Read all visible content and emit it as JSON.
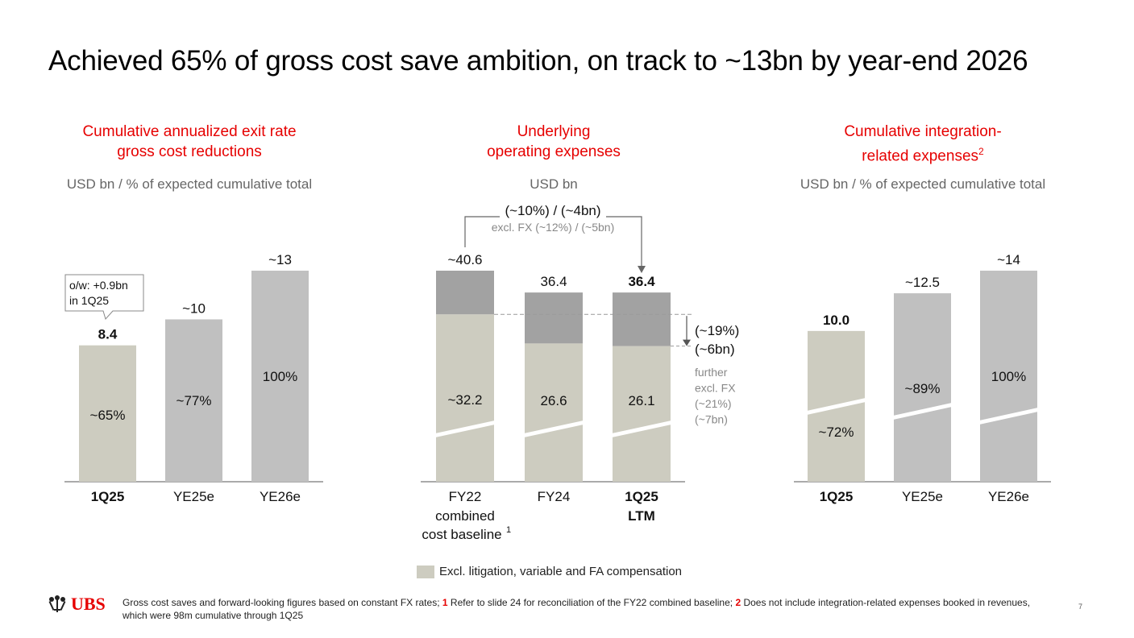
{
  "title": "Achieved 65% of gross cost save ambition, on track to ~13bn by year-end 2026",
  "colors": {
    "accent": "#e60000",
    "bar_light": "#cdccc0",
    "bar_grey": "#c0c0c0",
    "bar_dark": "#a2a2a2"
  },
  "panels": {
    "left": {
      "subtitle_line1": "Cumulative annualized exit rate",
      "subtitle_line2": "gross cost reductions",
      "unit": "USD bn / % of expected cumulative total"
    },
    "middle": {
      "subtitle_line1": "Underlying",
      "subtitle_line2": "operating expenses",
      "unit": "USD bn"
    },
    "right": {
      "subtitle_line1": "Cumulative integration-",
      "subtitle_line2": "related expenses",
      "subtitle_sup": "2",
      "unit": "USD bn / % of expected cumulative total"
    }
  },
  "chart_data": [
    {
      "type": "bar",
      "categories": [
        "1Q25",
        "YE25e",
        "YE26e"
      ],
      "values": [
        8.4,
        10,
        13
      ],
      "value_labels": [
        "8.4",
        "~10",
        "~13"
      ],
      "pct_labels": [
        "~65%",
        "~77%",
        "100%"
      ],
      "callout_line1": "o/w: +0.9bn",
      "callout_line2": "in 1Q25"
    },
    {
      "type": "bar",
      "categories": [
        "FY22",
        "FY24",
        "1Q25"
      ],
      "category_line2": [
        "combined",
        "",
        "LTM"
      ],
      "category_line3": [
        "cost baseline",
        "",
        ""
      ],
      "category_sup": [
        "1",
        "",
        ""
      ],
      "series": [
        {
          "name": "Excl. litigation, variable and FA compensation",
          "values": [
            32.2,
            26.6,
            26.1
          ],
          "labels": [
            "~32.2",
            "26.6",
            "26.1"
          ]
        },
        {
          "values": [
            8.4,
            9.8,
            10.3
          ]
        }
      ],
      "totals": [
        40.6,
        36.4,
        36.4
      ],
      "total_labels": [
        "~40.6",
        "36.4",
        "36.4"
      ],
      "bracket_line1": "(~10%) / (~4bn)",
      "bracket_line2": "excl. FX (~12%) / (~5bn)",
      "side_pct": "(~19%)",
      "side_bn": "(~6bn)",
      "further": [
        "further",
        "excl. FX",
        "(~21%)",
        "(~7bn)"
      ]
    },
    {
      "type": "bar",
      "categories": [
        "1Q25",
        "YE25e",
        "YE26e"
      ],
      "values": [
        10.0,
        12.5,
        14
      ],
      "value_labels": [
        "10.0",
        "~12.5",
        "~14"
      ],
      "pct_labels": [
        "~72%",
        "~89%",
        "100%"
      ]
    }
  ],
  "legend_label": "Excl. litigation, variable and FA compensation",
  "logo_text": "UBS",
  "footnote": {
    "part1": "Gross cost saves and forward-looking figures based on constant FX rates; ",
    "n1": "1",
    "part2": " Refer to slide 24 for reconciliation of the FY22 combined baseline; ",
    "n2": "2",
    "part3": " Does not include integration-related expenses booked in revenues, which were 98m cumulative through 1Q25"
  },
  "page_number": "7"
}
